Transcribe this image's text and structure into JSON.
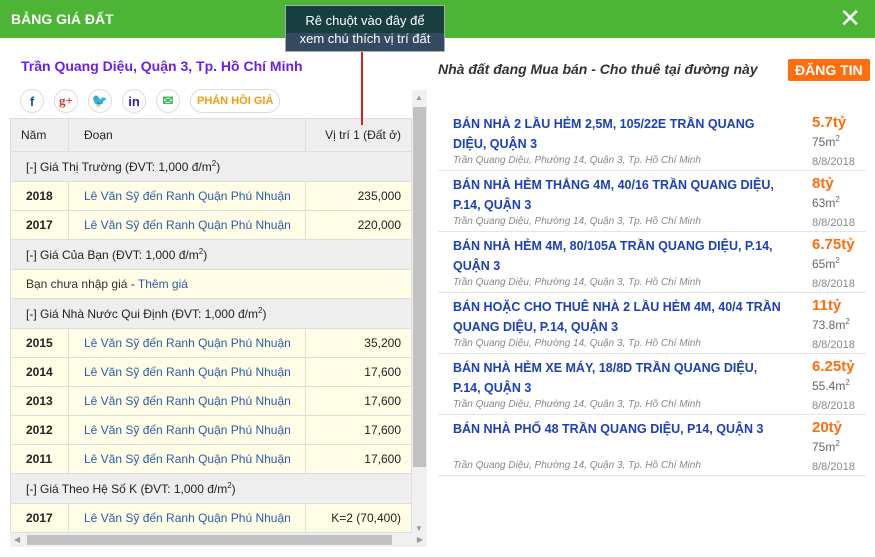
{
  "header": {
    "title": "BẢNG GIÁ ĐẤT",
    "close": "✕"
  },
  "tooltip": {
    "line1": "Rê chuột vào đây để",
    "line2": "xem chú thích vị trí đất"
  },
  "address": "Trần Quang Diệu, Quận 3, Tp. Hồ Chí Minh",
  "social": {
    "facebook": "f",
    "googleplus": "g+",
    "twitter": "🐦",
    "linkedin": "in",
    "email": "✉",
    "feedback": "PHẢN HỒI GIÁ"
  },
  "table": {
    "headers": [
      "Năm",
      "Đoạn",
      "Vị trí 1 (Đất ở)"
    ],
    "groups": [
      {
        "title": "[-] Giá Thị Trường (ĐVT: 1,000 đ/m",
        "rows": [
          [
            "2018",
            "Lê Văn Sỹ đến Ranh Quận Phú Nhuận",
            "235,000"
          ],
          [
            "2017",
            "Lê Văn Sỹ đến Ranh Quận Phú Nhuận",
            "220,000"
          ]
        ]
      },
      {
        "title": "[-] Giá Của Bạn (ĐVT: 1,000 đ/m",
        "note": "Bạn chưa nhập giá - ",
        "note_link": "Thêm giá"
      },
      {
        "title": "[-] Giá Nhà Nước Qui Định (ĐVT: 1,000 đ/m",
        "rows": [
          [
            "2015",
            "Lê Văn Sỹ đến Ranh Quận Phú Nhuận",
            "35,200"
          ],
          [
            "2014",
            "Lê Văn Sỹ đến Ranh Quận Phú Nhuận",
            "17,600"
          ],
          [
            "2013",
            "Lê Văn Sỹ đến Ranh Quận Phú Nhuận",
            "17,600"
          ],
          [
            "2012",
            "Lê Văn Sỹ đến Ranh Quận Phú Nhuận",
            "17,600"
          ],
          [
            "2011",
            "Lê Văn Sỹ đến Ranh Quận Phú Nhuận",
            "17,600"
          ]
        ]
      },
      {
        "title": "[-] Giá Theo Hệ Số K (ĐVT: 1,000 đ/m",
        "rows": [
          [
            "2017",
            "Lê Văn Sỹ đến Ranh Quận Phú Nhuận",
            "K=2 (70,400)"
          ]
        ]
      }
    ]
  },
  "right": {
    "title": "Nhà đất đang Mua bán - Cho thuê tại đường này",
    "post_button": "ĐĂNG TIN",
    "listings": [
      {
        "title": "BÁN NHÀ 2 LẦU HẺM 2,5M, 105/22E TRẦN QUANG DIỆU, QUẬN 3",
        "address": "Trần Quang Diệu, Phường 14, Quận 3, Tp. Hồ Chí Minh",
        "price": "5.7tỷ",
        "area": "75m",
        "date": "8/8/2018"
      },
      {
        "title": "BÁN NHÀ HẺM THẲNG 4M, 40/16 TRẦN QUANG DIỆU, P.14, QUẬN 3",
        "address": "Trần Quang Diệu, Phường 14, Quận 3, Tp. Hồ Chí Minh",
        "price": "8tỷ",
        "area": "63m",
        "date": "8/8/2018"
      },
      {
        "title": "BÁN NHÀ HẺM 4M, 80/105A TRẦN QUANG DIỆU, P.14, QUẬN 3",
        "address": "Trần Quang Diệu, Phường 14, Quận 3, Tp. Hồ Chí Minh",
        "price": "6.75tỷ",
        "area": "65m",
        "date": "8/8/2018"
      },
      {
        "title": "BÁN HOẶC CHO THUÊ NHÀ 2 LẦU HẺM 4M, 40/4 TRẦN QUANG DIỆU, P.14, QUẬN 3",
        "address": "Trần Quang Diệu, Phường 14, Quận 3, Tp. Hồ Chí Minh",
        "price": "11tỷ",
        "area": "73.8m",
        "date": "8/8/2018"
      },
      {
        "title": "BÁN NHÀ HẺM XE MÁY, 18/8D TRẦN QUANG DIỆU, P.14, QUẬN 3",
        "address": "Trần Quang Diệu, Phường 14, Quận 3, Tp. Hồ Chí Minh",
        "price": "6.25tỷ",
        "area": "55.4m",
        "date": "8/8/2018"
      },
      {
        "title": "BÁN NHÀ PHỐ 48 TRẦN QUANG DIỆU, P14, QUẬN 3",
        "address": "Trần Quang Diệu, Phường 14, Quận 3, Tp. Hồ Chí Minh",
        "price": "20tỷ",
        "area": "75m",
        "date": "8/8/2018"
      }
    ]
  },
  "units": {
    "sup": "2",
    "close_paren": ")"
  },
  "colors": {
    "header": "#4cb535",
    "accent": "#ff6d0c",
    "link": "#1c3fba"
  }
}
